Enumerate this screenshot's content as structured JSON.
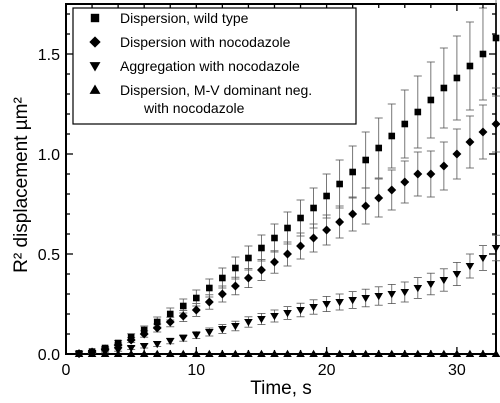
{
  "chart_data": {
    "type": "scatter",
    "xlabel": "Time, s",
    "ylabel": "R² displacement µm²",
    "xlim": [
      0,
      33
    ],
    "ylim": [
      0,
      1.75
    ],
    "xticks": [
      0,
      10,
      20,
      30
    ],
    "yticks": [
      0.0,
      0.5,
      1.0,
      1.5
    ],
    "xtick_labels": [
      "0",
      "10",
      "20",
      "30"
    ],
    "ytick_labels": [
      "0.0",
      "0.5",
      "1.0",
      "1.5"
    ],
    "grid": false,
    "legend_position": "top-left",
    "series": [
      {
        "name": "Dispersion, wild type",
        "marker": "square",
        "x": [
          1,
          2,
          3,
          4,
          5,
          6,
          7,
          8,
          9,
          10,
          11,
          12,
          13,
          14,
          15,
          16,
          17,
          18,
          19,
          20,
          21,
          22,
          23,
          24,
          25,
          26,
          27,
          28,
          29,
          30,
          31,
          32,
          33
        ],
        "y": [
          0.003,
          0.012,
          0.03,
          0.055,
          0.085,
          0.12,
          0.16,
          0.2,
          0.24,
          0.28,
          0.33,
          0.38,
          0.43,
          0.48,
          0.53,
          0.58,
          0.63,
          0.68,
          0.73,
          0.79,
          0.85,
          0.91,
          0.97,
          1.03,
          1.09,
          1.15,
          1.21,
          1.27,
          1.33,
          1.38,
          1.44,
          1.5,
          1.58
        ],
        "err": [
          0.002,
          0.004,
          0.008,
          0.012,
          0.016,
          0.02,
          0.025,
          0.03,
          0.035,
          0.04,
          0.045,
          0.05,
          0.055,
          0.06,
          0.065,
          0.07,
          0.08,
          0.09,
          0.1,
          0.11,
          0.12,
          0.13,
          0.14,
          0.15,
          0.16,
          0.17,
          0.18,
          0.19,
          0.2,
          0.21,
          0.22,
          0.23,
          0.25
        ]
      },
      {
        "name": "Dispersion with nocodazole",
        "marker": "diamond",
        "x": [
          1,
          2,
          3,
          4,
          5,
          6,
          7,
          8,
          9,
          10,
          11,
          12,
          13,
          14,
          15,
          16,
          17,
          18,
          19,
          20,
          21,
          22,
          23,
          24,
          25,
          26,
          27,
          28,
          29,
          30,
          31,
          32,
          33
        ],
        "y": [
          0.002,
          0.01,
          0.025,
          0.045,
          0.07,
          0.1,
          0.13,
          0.16,
          0.19,
          0.22,
          0.26,
          0.3,
          0.34,
          0.38,
          0.42,
          0.46,
          0.5,
          0.54,
          0.58,
          0.62,
          0.66,
          0.7,
          0.74,
          0.78,
          0.82,
          0.86,
          0.9,
          0.9,
          0.94,
          1.0,
          1.06,
          1.11,
          1.15
        ],
        "err": [
          0.002,
          0.004,
          0.007,
          0.01,
          0.013,
          0.016,
          0.02,
          0.024,
          0.028,
          0.032,
          0.036,
          0.04,
          0.044,
          0.048,
          0.052,
          0.056,
          0.06,
          0.065,
          0.07,
          0.075,
          0.08,
          0.085,
          0.09,
          0.095,
          0.1,
          0.105,
          0.11,
          0.115,
          0.12,
          0.125,
          0.13,
          0.135,
          0.14
        ]
      },
      {
        "name": "Aggregation with nocodazole",
        "marker": "triangle-down",
        "x": [
          1,
          2,
          3,
          4,
          5,
          6,
          7,
          8,
          9,
          10,
          11,
          12,
          13,
          14,
          15,
          16,
          17,
          18,
          19,
          20,
          21,
          22,
          23,
          24,
          25,
          26,
          27,
          28,
          29,
          30,
          31,
          32,
          33
        ],
        "y": [
          0.001,
          0.005,
          0.01,
          0.02,
          0.03,
          0.04,
          0.05,
          0.065,
          0.08,
          0.095,
          0.11,
          0.125,
          0.14,
          0.16,
          0.175,
          0.19,
          0.205,
          0.22,
          0.235,
          0.25,
          0.26,
          0.27,
          0.28,
          0.29,
          0.3,
          0.31,
          0.33,
          0.35,
          0.37,
          0.4,
          0.44,
          0.48,
          0.53
        ],
        "err": [
          0.001,
          0.002,
          0.004,
          0.006,
          0.008,
          0.01,
          0.012,
          0.014,
          0.016,
          0.018,
          0.02,
          0.022,
          0.024,
          0.026,
          0.028,
          0.03,
          0.032,
          0.034,
          0.036,
          0.038,
          0.04,
          0.042,
          0.044,
          0.046,
          0.048,
          0.05,
          0.052,
          0.054,
          0.056,
          0.058,
          0.06,
          0.062,
          0.064
        ]
      },
      {
        "name": "Dispersion, M-V dominant neg. with nocodazole",
        "name_lines": [
          "Dispersion, M-V dominant neg.",
          "with nocodazole"
        ],
        "marker": "triangle-up",
        "x": [
          1,
          2,
          3,
          4,
          5,
          6,
          7,
          8,
          9,
          10,
          11,
          12,
          13,
          14,
          15,
          16,
          17,
          18,
          19,
          20,
          21,
          22,
          23,
          24,
          25,
          26,
          27,
          28,
          29,
          30,
          31,
          32,
          33
        ],
        "y": [
          0.0,
          0.0,
          0.0,
          0.0,
          0.0,
          0.0,
          0.0,
          0.0,
          0.0,
          0.0,
          0.0,
          0.0,
          0.0,
          0.0,
          0.0,
          0.0,
          0.0,
          0.0,
          0.0,
          0.0,
          0.0,
          0.0,
          0.0,
          0.0,
          0.0,
          0.0,
          0.0,
          0.0,
          0.0,
          0.0,
          0.0,
          0.0,
          0.0
        ],
        "err": [
          0,
          0,
          0,
          0,
          0,
          0,
          0,
          0,
          0,
          0,
          0,
          0,
          0,
          0,
          0,
          0,
          0,
          0,
          0,
          0,
          0,
          0,
          0,
          0,
          0,
          0,
          0,
          0,
          0,
          0,
          0,
          0,
          0
        ]
      }
    ]
  }
}
